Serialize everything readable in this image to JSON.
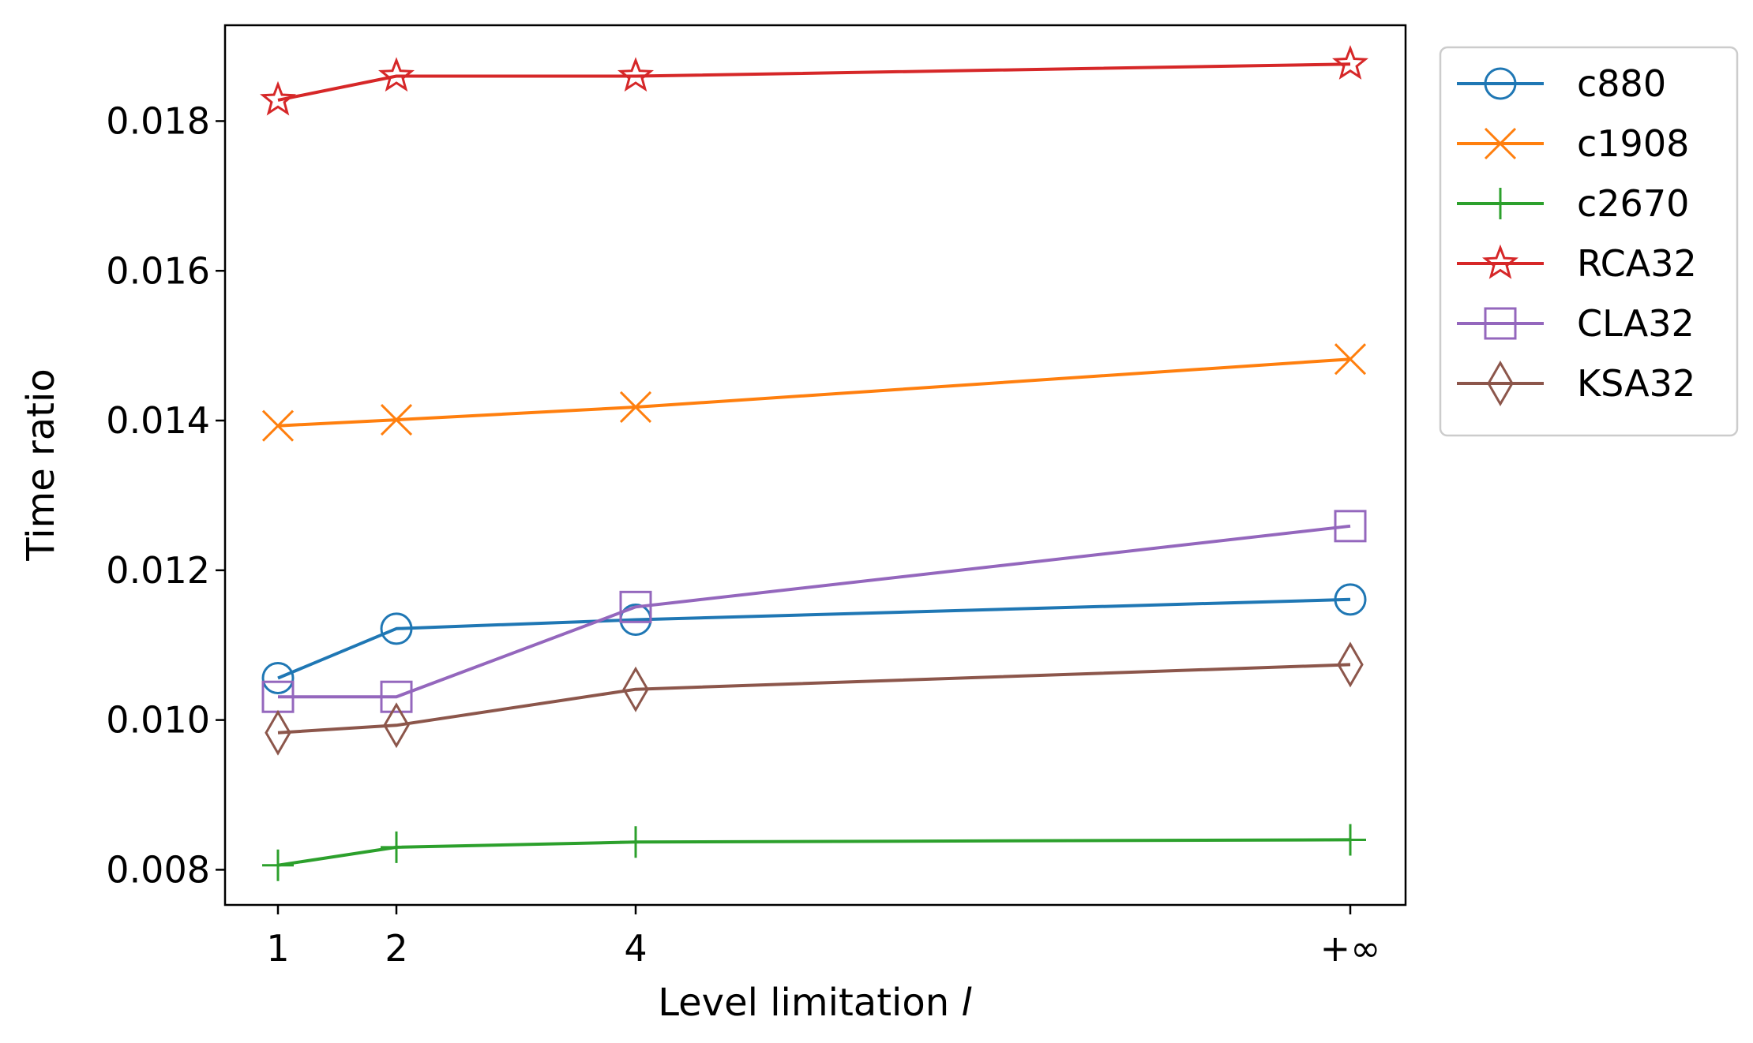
{
  "chart_data": {
    "type": "line",
    "title": "",
    "xlabel_text": "Level limitation ",
    "xlabel_var": "l",
    "ylabel": "Time ratio",
    "x_categories": [
      "1",
      "2",
      "4",
      "+∞"
    ],
    "y_ticks": [
      "0.008",
      "0.010",
      "0.012",
      "0.014",
      "0.016",
      "0.018"
    ],
    "ylim": [
      0.00753,
      0.01928
    ],
    "legend_position": "outside upper right",
    "grid": false,
    "series": [
      {
        "name": "c880",
        "color": "#1f77b4",
        "marker": "circle",
        "values": [
          0.01056,
          0.01122,
          0.01134,
          0.01161
        ]
      },
      {
        "name": "c1908",
        "color": "#ff7f0e",
        "marker": "x",
        "values": [
          0.01393,
          0.01401,
          0.01418,
          0.01482
        ]
      },
      {
        "name": "c2670",
        "color": "#2ca02c",
        "marker": "plus",
        "values": [
          0.00806,
          0.0083,
          0.00837,
          0.0084
        ]
      },
      {
        "name": "RCA32",
        "color": "#d62728",
        "marker": "star",
        "values": [
          0.01828,
          0.0186,
          0.0186,
          0.01876
        ]
      },
      {
        "name": "CLA32",
        "color": "#9467bd",
        "marker": "square",
        "values": [
          0.01031,
          0.01031,
          0.01151,
          0.01259
        ]
      },
      {
        "name": "KSA32",
        "color": "#8c564b",
        "marker": "diamond",
        "values": [
          0.00983,
          0.00993,
          0.01041,
          0.01074
        ]
      }
    ]
  }
}
